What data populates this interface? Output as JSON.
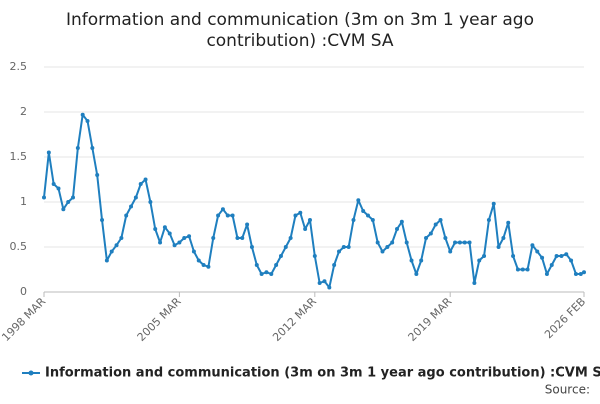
{
  "chart_data": {
    "type": "line",
    "title": [
      "Information and communication (3m on 3m 1 year ago",
      "contribution) :CVM SA"
    ],
    "source": "Source:",
    "x": [
      "1998 MAR",
      "1998 JUN",
      "1998 SEP",
      "1998 DEC",
      "1999 MAR",
      "1999 JUN",
      "1999 SEP",
      "1999 DEC",
      "2000 MAR",
      "2000 JUN",
      "2000 SEP",
      "2000 DEC",
      "2001 MAR",
      "2001 JUN",
      "2001 SEP",
      "2001 DEC",
      "2002 MAR",
      "2002 JUN",
      "2002 SEP",
      "2002 DEC",
      "2003 MAR",
      "2003 JUN",
      "2003 SEP",
      "2003 DEC",
      "2004 MAR",
      "2004 JUN",
      "2004 SEP",
      "2004 DEC",
      "2005 MAR",
      "2005 JUN",
      "2005 SEP",
      "2005 DEC",
      "2006 MAR",
      "2006 JUN",
      "2006 SEP",
      "2006 DEC",
      "2007 MAR",
      "2007 JUN",
      "2007 SEP",
      "2007 DEC",
      "2008 MAR",
      "2008 JUN",
      "2008 SEP",
      "2008 DEC",
      "2009 MAR",
      "2009 JUN",
      "2009 SEP",
      "2009 DEC",
      "2010 MAR",
      "2010 JUN",
      "2010 SEP",
      "2010 DEC",
      "2011 MAR",
      "2011 JUN",
      "2011 SEP",
      "2011 DEC",
      "2012 MAR",
      "2012 JUN",
      "2012 SEP",
      "2012 DEC",
      "2013 MAR",
      "2013 JUN",
      "2013 SEP",
      "2013 DEC",
      "2014 MAR",
      "2014 JUN",
      "2014 SEP",
      "2014 DEC",
      "2015 MAR",
      "2015 JUN",
      "2015 SEP",
      "2015 DEC",
      "2016 MAR",
      "2016 JUN",
      "2016 SEP",
      "2016 DEC",
      "2017 MAR",
      "2017 JUN",
      "2017 SEP",
      "2017 DEC",
      "2018 MAR",
      "2018 JUN",
      "2018 SEP",
      "2018 DEC",
      "2019 MAR",
      "2019 JUN",
      "2019 SEP",
      "2019 DEC",
      "2020 MAR",
      "2020 JUN",
      "2020 SEP",
      "2020 DEC",
      "2021 MAR",
      "2021 JUN",
      "2021 SEP",
      "2021 DEC",
      "2022 MAR",
      "2022 JUN",
      "2022 SEP",
      "2022 DEC",
      "2023 MAR",
      "2023 JUN",
      "2023 SEP",
      "2023 DEC",
      "2024 MAR",
      "2024 JUN",
      "2024 SEP",
      "2024 DEC",
      "2025 MAR",
      "2025 JUN",
      "2025 SEP",
      "2025 DEC",
      "2026 FEB"
    ],
    "series": [
      {
        "name": "Information and communication (3m on 3m 1 year ago contribution) :CVM SA",
        "color": "#1f7fbf",
        "values": [
          1.05,
          1.55,
          1.2,
          1.15,
          0.92,
          1.0,
          1.05,
          1.6,
          1.97,
          1.9,
          1.6,
          1.3,
          0.8,
          0.35,
          0.45,
          0.52,
          0.6,
          0.85,
          0.95,
          1.05,
          1.2,
          1.25,
          1.0,
          0.7,
          0.55,
          0.72,
          0.65,
          0.52,
          0.55,
          0.6,
          0.62,
          0.45,
          0.35,
          0.3,
          0.28,
          0.6,
          0.85,
          0.92,
          0.85,
          0.85,
          0.6,
          0.6,
          0.75,
          0.5,
          0.3,
          0.2,
          0.22,
          0.2,
          0.3,
          0.4,
          0.5,
          0.6,
          0.85,
          0.88,
          0.7,
          0.8,
          0.4,
          0.1,
          0.12,
          0.05,
          0.3,
          0.45,
          0.5,
          0.5,
          0.8,
          1.02,
          0.9,
          0.85,
          0.8,
          0.55,
          0.45,
          0.5,
          0.55,
          0.7,
          0.78,
          0.55,
          0.35,
          0.2,
          0.35,
          0.6,
          0.65,
          0.75,
          0.8,
          0.6,
          0.45,
          0.55,
          0.55,
          0.55,
          0.55,
          0.1,
          0.35,
          0.4,
          0.8,
          0.98,
          0.5,
          0.6,
          0.77,
          0.4,
          0.25,
          0.25,
          0.25,
          0.52,
          0.45,
          0.38,
          0.2,
          0.3,
          0.4,
          0.4,
          0.42,
          0.35,
          0.2,
          0.2,
          0.22
        ]
      }
    ],
    "xticks": [
      "1998 MAR",
      "2005 MAR",
      "2012 MAR",
      "2019 MAR",
      "2026 FEB"
    ],
    "ylim": [
      0,
      2.5
    ],
    "yticks": [
      0,
      0.5,
      1,
      1.5,
      2,
      2.5
    ],
    "grid": true,
    "legend": "bottom"
  }
}
